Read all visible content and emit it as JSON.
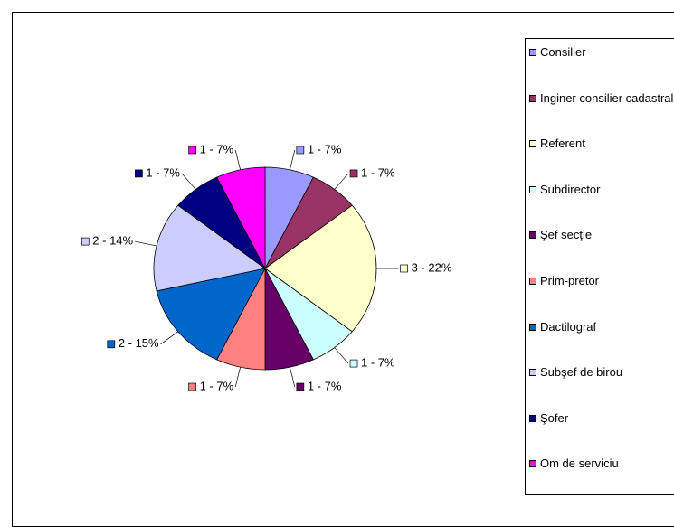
{
  "chart_data": {
    "type": "pie",
    "categories": [
      "Consilier",
      "Inginer consilier cadastral",
      "Referent",
      "Subdirector",
      "Şef secţie",
      "Prim-pretor",
      "Dactilograf",
      "Subşef de birou",
      "Şofer",
      "Om de serviciu"
    ],
    "values": [
      1,
      1,
      3,
      1,
      1,
      1,
      2,
      2,
      1,
      1
    ],
    "value_labels": [
      "1 - 7%",
      "1 - 7%",
      "3 - 22%",
      "1 - 7%",
      "1 - 7%",
      "1 - 7%",
      "2 - 15%",
      "2 - 14%",
      "1 - 7%",
      "1 - 7%"
    ],
    "colors": [
      "#9999ff",
      "#993366",
      "#ffffcc",
      "#ccffff",
      "#660066",
      "#ff8080",
      "#0066cc",
      "#ccccff",
      "#000080",
      "#ff00ff"
    ],
    "legend": "right"
  }
}
